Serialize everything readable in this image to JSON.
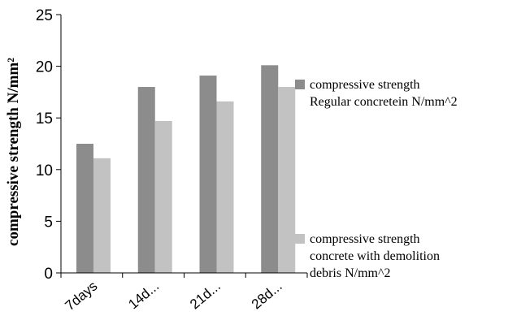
{
  "chart_data": {
    "type": "bar",
    "categories": [
      "7days",
      "14d...",
      "21d...",
      "28d..."
    ],
    "series": [
      {
        "name": "compressive strength Regular concretein N/mm^2",
        "values": [
          12.5,
          18,
          19.1,
          20.1
        ],
        "color": "#8c8c8c"
      },
      {
        "name": "compressive strength concrete with demolition debris N/mm^2",
        "values": [
          11.1,
          14.7,
          16.6,
          18
        ],
        "color": "#c2c2c2"
      }
    ],
    "ylabel": "compressive strength N/mm²",
    "xlabel": "",
    "ylim": [
      0,
      25
    ],
    "yticks": [
      0,
      5,
      10,
      15,
      20,
      25
    ],
    "legend_position": "right",
    "grid": false
  }
}
